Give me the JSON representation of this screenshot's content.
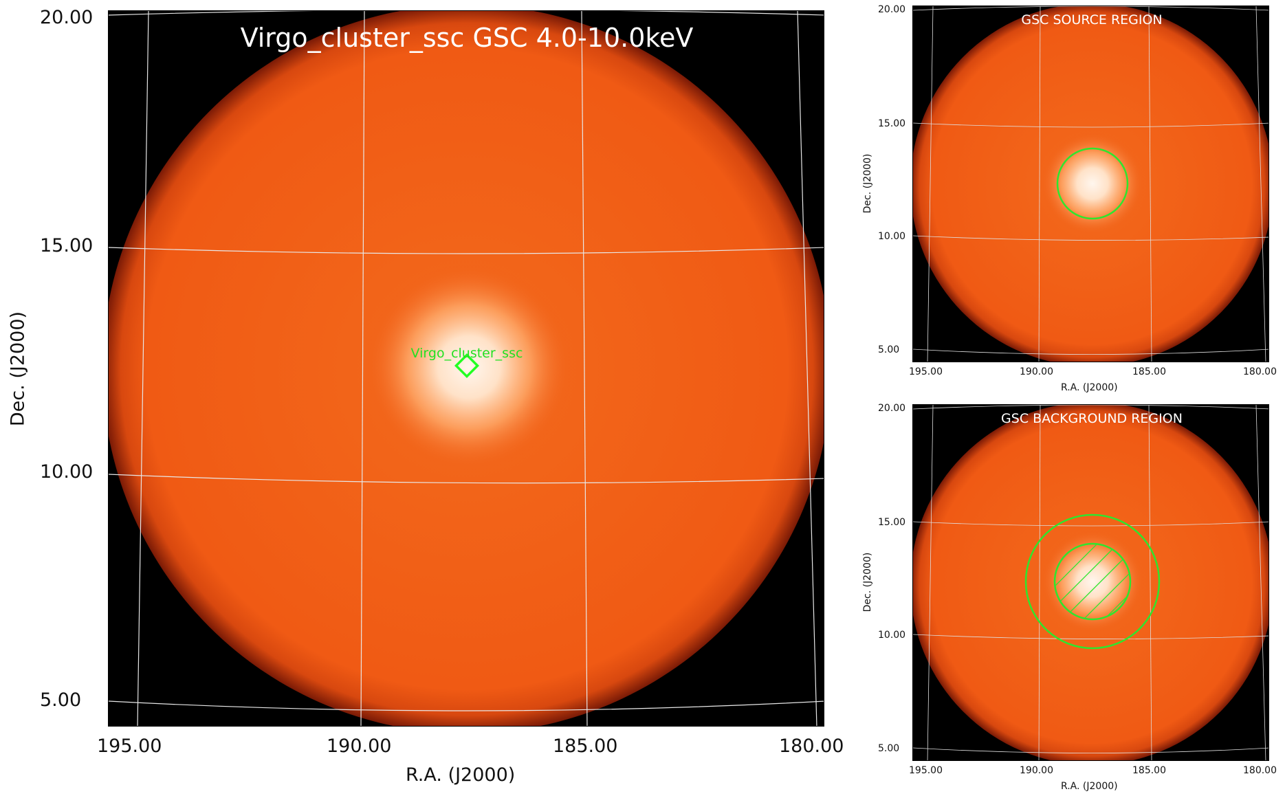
{
  "colors": {
    "frame_bg": "#000000",
    "disk_orange": "#f05a14",
    "disk_edge": "#a52a0a",
    "core_white": "#fff2e6",
    "grid": "#e8e8e8",
    "region_green": "#2ee62e",
    "marker_green": "#22ff22"
  },
  "main": {
    "title": "Virgo_cluster_ssc GSC 4.0-10.0keV",
    "source_label": "Virgo_cluster_ssc",
    "xlabel": "R.A. (J2000)",
    "ylabel": "Dec. (J2000)",
    "ra_ticks": [
      "195.00",
      "190.00",
      "185.00",
      "180.00"
    ],
    "dec_ticks": [
      "20.00",
      "15.00",
      "10.00",
      "5.00"
    ]
  },
  "source_panel": {
    "title": "GSC SOURCE REGION",
    "xlabel": "R.A. (J2000)",
    "ylabel": "Dec. (J2000)",
    "ra_ticks": [
      "195.00",
      "190.00",
      "185.00",
      "180.00"
    ],
    "dec_ticks": [
      "20.00",
      "15.00",
      "10.00",
      "5.00"
    ]
  },
  "background_panel": {
    "title": "GSC BACKGROUND REGION",
    "xlabel": "R.A. (J2000)",
    "ylabel": "Dec. (J2000)",
    "ra_ticks": [
      "195.00",
      "190.00",
      "185.00",
      "180.00"
    ],
    "dec_ticks": [
      "20.00",
      "15.00",
      "10.00",
      "5.00"
    ]
  }
}
